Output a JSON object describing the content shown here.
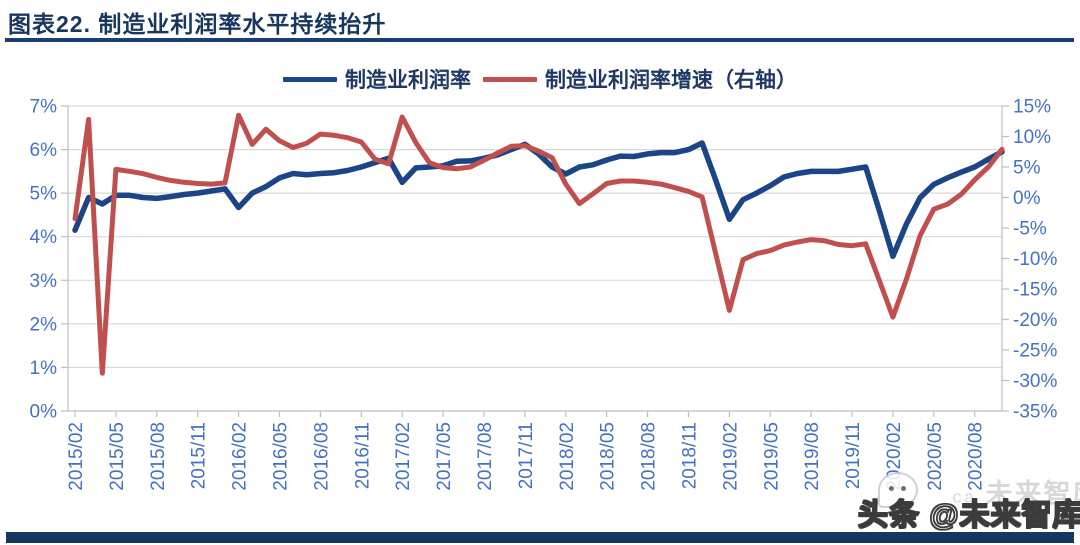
{
  "page": {
    "title": "图表22.  制造业利润率水平持续抬升",
    "watermark_ghost": "未来智库",
    "watermark_ghost_small": "ca",
    "watermark_main": "头条 @未来智库"
  },
  "colors": {
    "title": "#17375E",
    "rule": "#1B3E73",
    "legend_text": "#1F3864",
    "axis_label": "#4472C4",
    "gridline": "#D9D9D9",
    "axis_line": "#BFBFBF",
    "series_margin": "#1C4587",
    "series_growth": "#C0504D",
    "footer_bar": "#17375E"
  },
  "legend": {
    "items": [
      {
        "label": "制造业利润率",
        "color_key": "series_margin"
      },
      {
        "label": "制造业利润率增速（右轴）",
        "color_key": "series_growth"
      }
    ]
  },
  "chart_data": {
    "type": "line",
    "title": "制造业利润率水平持续抬升",
    "grid": true,
    "legend_position": "top-center",
    "x": [
      "2015/02",
      "2015/03",
      "2015/04",
      "2015/05",
      "2015/06",
      "2015/07",
      "2015/08",
      "2015/09",
      "2015/10",
      "2015/11",
      "2015/12",
      "2016/01",
      "2016/02",
      "2016/03",
      "2016/04",
      "2016/05",
      "2016/06",
      "2016/07",
      "2016/08",
      "2016/09",
      "2016/10",
      "2016/11",
      "2016/12",
      "2017/01",
      "2017/02",
      "2017/03",
      "2017/04",
      "2017/05",
      "2017/06",
      "2017/07",
      "2017/08",
      "2017/09",
      "2017/10",
      "2017/11",
      "2017/12",
      "2018/01",
      "2018/02",
      "2018/03",
      "2018/04",
      "2018/05",
      "2018/06",
      "2018/07",
      "2018/08",
      "2018/09",
      "2018/10",
      "2018/11",
      "2018/12",
      "2019/01",
      "2019/02",
      "2019/03",
      "2019/04",
      "2019/05",
      "2019/06",
      "2019/07",
      "2019/08",
      "2019/09",
      "2019/10",
      "2019/11",
      "2019/12",
      "2020/01",
      "2020/02",
      "2020/03",
      "2020/04",
      "2020/05",
      "2020/06",
      "2020/07",
      "2020/08",
      "2020/09",
      "2020/10"
    ],
    "x_tick_labels": [
      "2015/02",
      "2015/05",
      "2015/08",
      "2015/11",
      "2016/02",
      "2016/05",
      "2016/08",
      "2016/11",
      "2017/02",
      "2017/05",
      "2017/08",
      "2017/11",
      "2018/02",
      "2018/05",
      "2018/08",
      "2018/11",
      "2019/02",
      "2019/05",
      "2019/08",
      "2019/11",
      "2020/02",
      "2020/05",
      "2020/08"
    ],
    "series": [
      {
        "name": "制造业利润率",
        "axis": "left",
        "values": [
          4.15,
          4.9,
          4.75,
          4.95,
          4.95,
          4.9,
          4.88,
          4.92,
          4.97,
          5.0,
          5.05,
          5.1,
          4.67,
          5.0,
          5.15,
          5.35,
          5.45,
          5.42,
          5.45,
          5.47,
          5.52,
          5.6,
          5.7,
          5.8,
          5.25,
          5.58,
          5.6,
          5.63,
          5.73,
          5.74,
          5.8,
          5.88,
          6.0,
          6.12,
          5.9,
          5.6,
          5.44,
          5.6,
          5.65,
          5.76,
          5.85,
          5.84,
          5.9,
          5.93,
          5.93,
          6.0,
          6.15,
          5.3,
          4.4,
          4.85,
          5.0,
          5.17,
          5.37,
          5.45,
          5.5,
          5.5,
          5.5,
          5.55,
          5.6,
          4.6,
          3.55,
          4.3,
          4.9,
          5.2,
          5.35,
          5.48,
          5.6,
          5.78,
          5.95
        ]
      },
      {
        "name": "制造业利润率增速（右轴）",
        "axis": "right",
        "values": [
          -3.5,
          12.8,
          -28.8,
          4.6,
          4.3,
          3.9,
          3.3,
          2.8,
          2.5,
          2.3,
          2.2,
          2.4,
          13.5,
          8.7,
          11.2,
          9.3,
          8.2,
          8.9,
          10.4,
          10.2,
          9.8,
          9.1,
          6.3,
          5.5,
          13.2,
          9.0,
          5.7,
          4.9,
          4.7,
          5.0,
          6.1,
          7.3,
          8.4,
          8.5,
          7.6,
          6.5,
          2.2,
          -1.0,
          0.6,
          2.3,
          2.7,
          2.7,
          2.5,
          2.2,
          1.6,
          1.0,
          0.1,
          -9.2,
          -18.5,
          -10.2,
          -9.2,
          -8.7,
          -7.8,
          -7.3,
          -6.9,
          -7.1,
          -7.7,
          -7.9,
          -7.6,
          -13.6,
          -19.6,
          -13.3,
          -6.2,
          -1.9,
          -1.1,
          0.5,
          2.9,
          5.0,
          7.9
        ]
      }
    ],
    "left_axis": {
      "min": 0,
      "max": 7,
      "step": 1,
      "unit": "%",
      "tick_labels": [
        "0%",
        "1%",
        "2%",
        "3%",
        "4%",
        "5%",
        "6%",
        "7%"
      ]
    },
    "right_axis": {
      "min": -35,
      "max": 15,
      "step": 5,
      "unit": "%",
      "tick_labels": [
        "15%",
        "10%",
        "5%",
        "0%",
        "-5%",
        "-10%",
        "-15%",
        "-20%",
        "-25%",
        "-30%",
        "-35%"
      ]
    }
  }
}
